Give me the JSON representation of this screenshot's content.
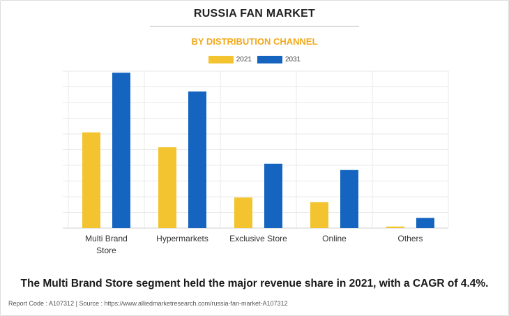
{
  "header": {
    "title": "RUSSIA FAN MARKET",
    "subtitle": "BY DISTRIBUTION CHANNEL"
  },
  "legend": [
    {
      "label": "2021",
      "color": "#f4c430"
    },
    {
      "label": "2031",
      "color": "#1565c0"
    }
  ],
  "chart_data": {
    "type": "bar",
    "categories": [
      "Multi Brand Store",
      "Hypermarkets",
      "Exclusive Store",
      "Online",
      "Others"
    ],
    "category_lines": [
      [
        "Multi Brand",
        "Store"
      ],
      [
        "Hypermarkets"
      ],
      [
        "Exclusive Store"
      ],
      [
        "Online"
      ],
      [
        "Others"
      ]
    ],
    "series": [
      {
        "name": "2021",
        "color": "#f4c430",
        "values": [
          61,
          51.5,
          19.5,
          16.5,
          1
        ]
      },
      {
        "name": "2031",
        "color": "#1565c0",
        "values": [
          99,
          87,
          41,
          37,
          6.5
        ]
      }
    ],
    "ylim": [
      0,
      100
    ],
    "grid": true,
    "legend_position": "top-center"
  },
  "caption": "The Multi Brand Store segment held the major revenue share in 2021, with a CAGR of 4.4%.",
  "footer": {
    "report_code": "Report Code : A107312",
    "separator": "|",
    "source": "Source : https://www.alliedmarketresearch.com/russia-fan-market-A107312"
  }
}
